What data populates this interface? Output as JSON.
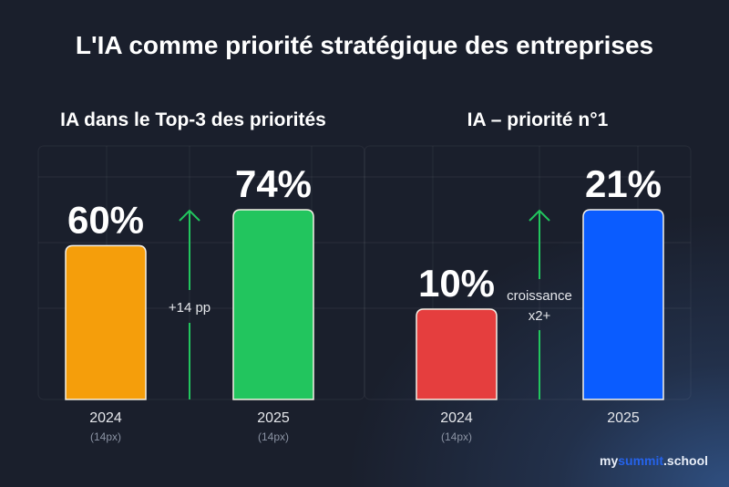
{
  "title": "L'IA comme priorité stratégique des entreprises",
  "chart_data": [
    {
      "type": "bar",
      "title": "IA dans le Top-3 des priorités",
      "categories": [
        "2024",
        "2025"
      ],
      "category_notes": [
        "(14px)",
        "(14px)"
      ],
      "values": [
        60,
        74
      ],
      "value_labels": [
        "60%",
        "74%"
      ],
      "colors": [
        "#f59e0b",
        "#22c55e"
      ],
      "annotation": [
        "+14 pp"
      ],
      "grid": true
    },
    {
      "type": "bar",
      "title": "IA – priorité n°1",
      "categories": [
        "2024",
        "2025"
      ],
      "category_notes": [
        "(14px)",
        ""
      ],
      "values": [
        10,
        21
      ],
      "value_labels": [
        "10%",
        "21%"
      ],
      "colors": [
        "#e53e3e",
        "#0a5cff"
      ],
      "annotation": [
        "croissance",
        "x2+"
      ],
      "grid": true
    }
  ],
  "logo": {
    "a": "my",
    "b": "summit",
    "c": ".school"
  }
}
